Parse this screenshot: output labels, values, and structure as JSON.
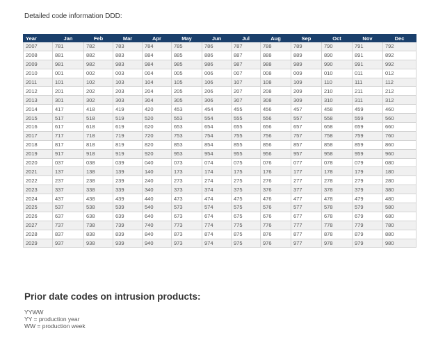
{
  "heading": "Detailed code information DDD:",
  "table": {
    "columns": [
      "Year",
      "Jan",
      "Feb",
      "Mar",
      "Apr",
      "May",
      "Jun",
      "Jul",
      "Aug",
      "Sep",
      "Oct",
      "Nov",
      "Dec"
    ],
    "rows": [
      [
        "2007",
        "781",
        "782",
        "783",
        "784",
        "785",
        "786",
        "787",
        "788",
        "789",
        "790",
        "791",
        "792"
      ],
      [
        "2008",
        "881",
        "882",
        "883",
        "884",
        "885",
        "886",
        "887",
        "888",
        "889",
        "890",
        "891",
        "892"
      ],
      [
        "2009",
        "981",
        "982",
        "983",
        "984",
        "985",
        "986",
        "987",
        "988",
        "989",
        "990",
        "991",
        "992"
      ],
      [
        "2010",
        "001",
        "002",
        "003",
        "004",
        "005",
        "006",
        "007",
        "008",
        "009",
        "010",
        "011",
        "012"
      ],
      [
        "2011",
        "101",
        "102",
        "103",
        "104",
        "105",
        "106",
        "107",
        "108",
        "109",
        "110",
        "111",
        "112"
      ],
      [
        "2012",
        "201",
        "202",
        "203",
        "204",
        "205",
        "206",
        "207",
        "208",
        "209",
        "210",
        "211",
        "212"
      ],
      [
        "2013",
        "301",
        "302",
        "303",
        "304",
        "305",
        "306",
        "307",
        "308",
        "309",
        "310",
        "311",
        "312"
      ],
      [
        "2014",
        "417",
        "418",
        "419",
        "420",
        "453",
        "454",
        "455",
        "456",
        "457",
        "458",
        "459",
        "460"
      ],
      [
        "2015",
        "517",
        "518",
        "519",
        "520",
        "553",
        "554",
        "555",
        "556",
        "557",
        "558",
        "559",
        "560"
      ],
      [
        "2016",
        "617",
        "618",
        "619",
        "620",
        "653",
        "654",
        "655",
        "656",
        "657",
        "658",
        "659",
        "660"
      ],
      [
        "2017",
        "717",
        "718",
        "719",
        "720",
        "753",
        "754",
        "755",
        "756",
        "757",
        "758",
        "759",
        "760"
      ],
      [
        "2018",
        "817",
        "818",
        "819",
        "820",
        "853",
        "854",
        "855",
        "856",
        "857",
        "858",
        "859",
        "860"
      ],
      [
        "2019",
        "917",
        "918",
        "919",
        "920",
        "953",
        "954",
        "955",
        "956",
        "957",
        "958",
        "959",
        "960"
      ],
      [
        "2020",
        "037",
        "038",
        "039",
        "040",
        "073",
        "074",
        "075",
        "076",
        "077",
        "078",
        "079",
        "080"
      ],
      [
        "2021",
        "137",
        "138",
        "139",
        "140",
        "173",
        "174",
        "175",
        "176",
        "177",
        "178",
        "179",
        "180"
      ],
      [
        "2022",
        "237",
        "238",
        "239",
        "240",
        "273",
        "274",
        "275",
        "276",
        "277",
        "278",
        "279",
        "280"
      ],
      [
        "2023",
        "337",
        "338",
        "339",
        "340",
        "373",
        "374",
        "375",
        "376",
        "377",
        "378",
        "379",
        "380"
      ],
      [
        "2024",
        "437",
        "438",
        "439",
        "440",
        "473",
        "474",
        "475",
        "476",
        "477",
        "478",
        "479",
        "480"
      ],
      [
        "2025",
        "537",
        "538",
        "539",
        "540",
        "573",
        "574",
        "575",
        "576",
        "577",
        "578",
        "579",
        "580"
      ],
      [
        "2026",
        "637",
        "638",
        "639",
        "640",
        "673",
        "674",
        "675",
        "676",
        "677",
        "678",
        "679",
        "680"
      ],
      [
        "2027",
        "737",
        "738",
        "739",
        "740",
        "773",
        "774",
        "775",
        "776",
        "777",
        "778",
        "779",
        "780"
      ],
      [
        "2028",
        "837",
        "838",
        "839",
        "840",
        "873",
        "874",
        "875",
        "876",
        "877",
        "878",
        "879",
        "880"
      ],
      [
        "2029",
        "937",
        "938",
        "939",
        "940",
        "973",
        "974",
        "975",
        "976",
        "977",
        "978",
        "979",
        "980"
      ]
    ]
  },
  "prior": {
    "title": "Prior date codes on intrusion products:",
    "lines": [
      "YYWW",
      "YY = production year",
      "WW = production week"
    ]
  }
}
